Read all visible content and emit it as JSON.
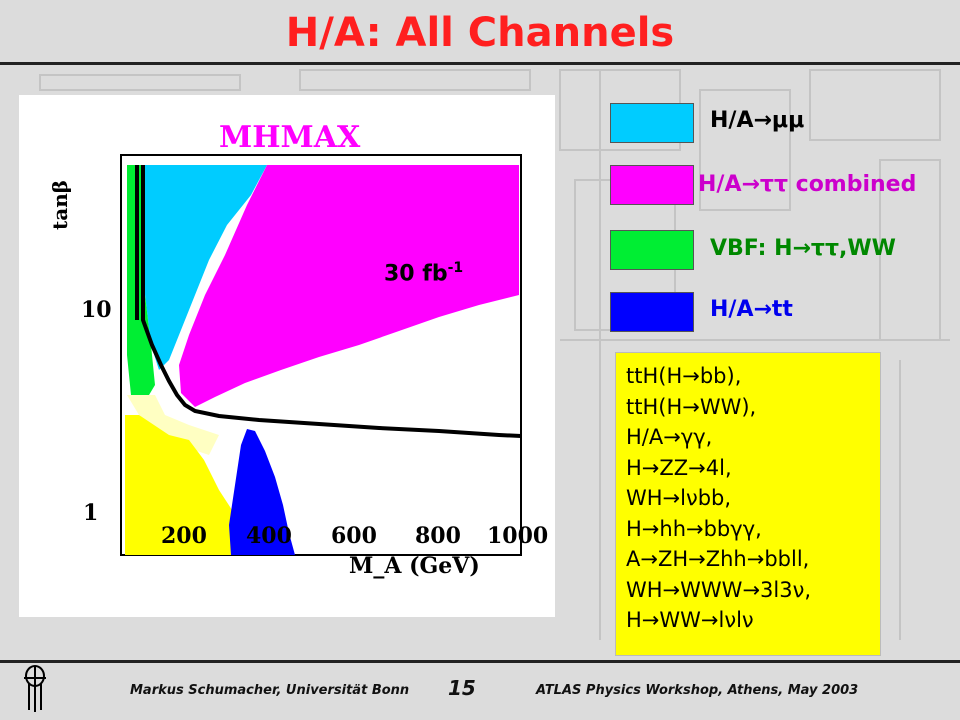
{
  "title": "H/A: All Channels",
  "plot": {
    "label": "MHMAX",
    "ylabel": "tanβ",
    "xlabel": "M_A (GeV)",
    "xticks": [
      "200",
      "400",
      "600",
      "800",
      "1000"
    ],
    "yticks": [
      "10",
      "1"
    ],
    "luminosity": "30 fb",
    "luminosity_exp": "-1"
  },
  "legend": [
    {
      "label": "H/A→μμ",
      "color": "#00ccff",
      "text_color": "#000000"
    },
    {
      "label": "H/A→ττ combined",
      "color": "#ff00ff",
      "text_color": "#cc00cc"
    },
    {
      "label": "VBF: H→ττ,WW",
      "color": "#00ee33",
      "text_color": "#008800"
    },
    {
      "label": "H/A→tt",
      "color": "#0000ff",
      "text_color": "#0000ee"
    }
  ],
  "other_channels": [
    "ttH(H→bb),",
    "ttH(H→WW),",
    "H/A→γγ,",
    "H→ZZ→4l,",
    "WH→lνbb,",
    "H→hh→bbγγ,",
    "A→ZH→Zhh→bbll,",
    "WH→WWW→3l3ν,",
    "H→WW→lνlν"
  ],
  "footer": {
    "author": "Markus Schumacher,  Universität Bonn",
    "page": "15",
    "event": "ATLAS Physics Workshop, Athens, May 2003"
  },
  "colors": {
    "title": "#ff1f1f",
    "yellow": "#ffff00",
    "background": "#dcdcdc"
  }
}
